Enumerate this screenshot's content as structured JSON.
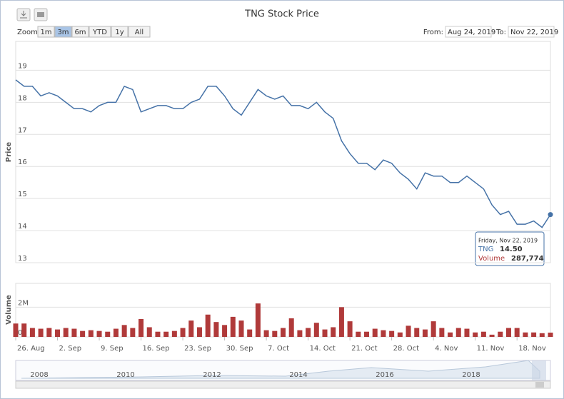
{
  "chart_data": [
    {
      "type": "line",
      "title": "TNG Stock Price",
      "y_label": "Price",
      "categories": [
        "26. Aug",
        null,
        null,
        null,
        null,
        "2. Sep",
        null,
        null,
        null,
        null,
        "9. Sep",
        null,
        null,
        null,
        null,
        "16. Sep",
        null,
        null,
        null,
        null,
        "23. Sep",
        null,
        null,
        null,
        null,
        "30. Sep",
        null,
        null,
        null,
        null,
        "7. Oct",
        null,
        null,
        null,
        null,
        "14. Oct",
        null,
        null,
        null,
        null,
        "21. Oct",
        null,
        null,
        null,
        null,
        "28. Oct",
        null,
        null,
        null,
        null,
        "4. Nov",
        null,
        null,
        null,
        null,
        "11. Nov",
        null,
        null,
        null,
        null,
        "18. Nov",
        null,
        null,
        null,
        null
      ],
      "series": [
        {
          "name": "TNG",
          "color": "#4572a7",
          "values": [
            18.7,
            18.5,
            18.5,
            18.2,
            18.3,
            18.2,
            18.0,
            17.8,
            17.8,
            17.7,
            17.9,
            18.0,
            18.0,
            18.5,
            18.4,
            17.7,
            17.8,
            17.9,
            17.9,
            17.8,
            17.8,
            18.0,
            18.1,
            18.5,
            18.5,
            18.2,
            17.8,
            17.6,
            18.0,
            18.4,
            18.2,
            18.1,
            18.2,
            17.9,
            17.9,
            17.8,
            18.0,
            17.7,
            17.5,
            16.8,
            16.4,
            16.1,
            16.1,
            15.9,
            16.2,
            16.1,
            15.8,
            15.6,
            15.3,
            15.8,
            15.7,
            15.7,
            15.5,
            15.5,
            15.7,
            15.5,
            15.3,
            14.8,
            14.5,
            14.6,
            14.2,
            14.2,
            14.3,
            14.1,
            14.5
          ]
        }
      ],
      "ylim": [
        13,
        19.9
      ],
      "yticks": [
        13,
        14,
        15,
        16,
        17,
        18,
        19
      ],
      "grid": true
    },
    {
      "type": "bar",
      "y_label": "Volume",
      "series": [
        {
          "name": "Volume",
          "color": "#b03a3a",
          "values": [
            900000,
            900000,
            600000,
            550000,
            600000,
            500000,
            600000,
            550000,
            400000,
            450000,
            400000,
            350000,
            550000,
            800000,
            600000,
            1200000,
            650000,
            350000,
            350000,
            400000,
            600000,
            1100000,
            650000,
            1500000,
            1000000,
            800000,
            1350000,
            1100000,
            500000,
            2250000,
            450000,
            400000,
            600000,
            1250000,
            450000,
            600000,
            950000,
            500000,
            650000,
            2000000,
            1050000,
            350000,
            350000,
            550000,
            450000,
            400000,
            300000,
            750000,
            600000,
            500000,
            1050000,
            600000,
            300000,
            600000,
            550000,
            300000,
            350000,
            150000,
            350000,
            600000,
            600000,
            300000,
            300000,
            250000,
            287774
          ]
        }
      ],
      "ylim": [
        0,
        3600000
      ],
      "yticks": [
        0,
        {
          "value": 2000000,
          "label": "2M"
        }
      ],
      "grid": true
    }
  ],
  "toolbar": {
    "zoom": "Zoom",
    "buttons": [
      "1m",
      "3m",
      "6m",
      "YTD",
      "1y",
      "All"
    ],
    "selected": 1,
    "from_label": "From:",
    "from": "Aug 24, 2019",
    "to_label": "To:",
    "to": "Nov 22, 2019"
  },
  "tooltip": {
    "date": "Friday, Nov 22, 2019",
    "series": "TNG",
    "price": "14.50",
    "volume_label": "Volume",
    "volume": "287,774"
  },
  "navigator": {
    "years": [
      "2008",
      "2010",
      "2012",
      "2014",
      "2016",
      "2018"
    ]
  }
}
